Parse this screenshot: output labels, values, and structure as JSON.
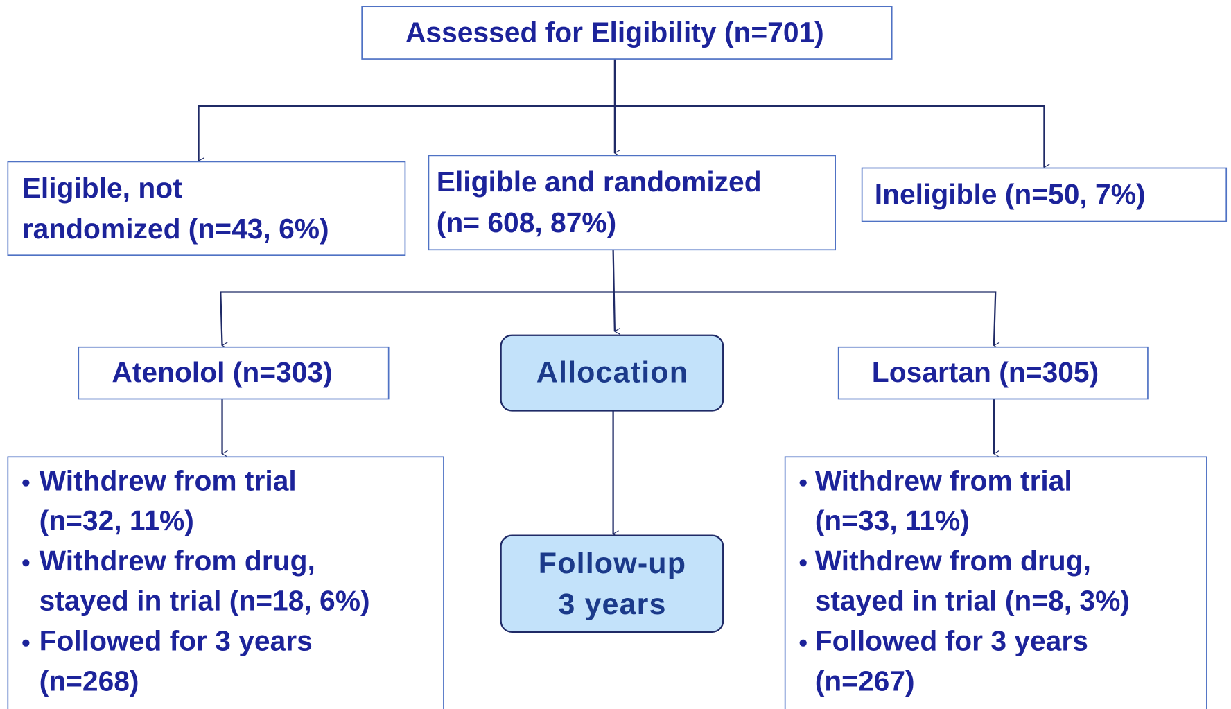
{
  "nodes": [
    {
      "lines": [
        "Assessed for Eligibility (n=701)"
      ]
    },
    {
      "lines": [
        "Eligible, not",
        "randomized (n=43, 6%)"
      ]
    },
    {
      "lines": [
        "Eligible and randomized",
        "(n= 608, 87%)"
      ]
    },
    {
      "lines": [
        "Ineligible (n=50, 7%)"
      ]
    },
    {
      "lines": [
        "Atenolol (n=303)"
      ]
    },
    {
      "lines": [
        "Allocation"
      ]
    },
    {
      "lines": [
        "Losartan (n=305)"
      ]
    },
    {
      "lines": [
        "Follow-up",
        "3 years"
      ]
    }
  ],
  "outcomes": [
    {
      "items": [
        {
          "lines": [
            "Withdrew from trial",
            "(n=32, 11%)"
          ]
        },
        {
          "lines": [
            "Withdrew from drug,",
            "stayed in trial (n=18, 6%)"
          ]
        },
        {
          "lines": [
            "Followed for 3 years",
            "(n=268)"
          ]
        }
      ]
    },
    {
      "items": [
        {
          "lines": [
            "Withdrew from trial",
            "(n=33, 11%)"
          ]
        },
        {
          "lines": [
            "Withdrew from drug,",
            "stayed in trial (n=8, 3%)"
          ]
        },
        {
          "lines": [
            "Followed for 3 years",
            "(n=267)"
          ]
        }
      ]
    }
  ]
}
